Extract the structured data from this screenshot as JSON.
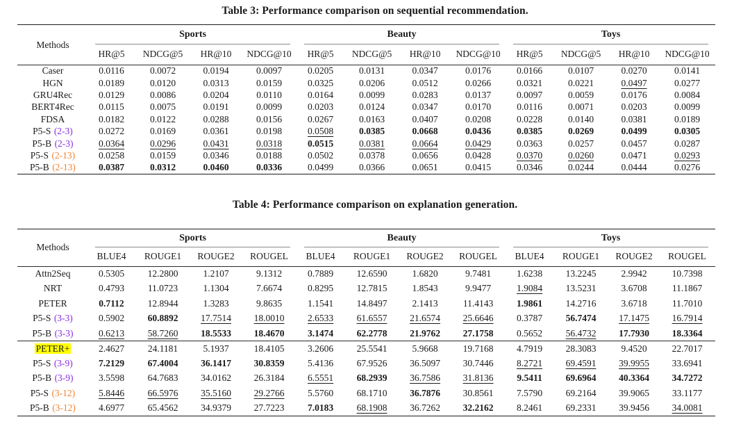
{
  "colors": {
    "purple": "#8A2BE2",
    "orange": "#EE8433",
    "highlight": "#FFFF00",
    "rule_dark": "#1c1c1c",
    "rule_light": "#8c8c8c",
    "text": "#1a1a1a"
  },
  "tables": [
    {
      "caption": "Table 3: Performance comparison on sequential recommendation.",
      "methods_header": "Methods",
      "groups": [
        "Sports",
        "Beauty",
        "Toys"
      ],
      "subcolumns": [
        "HR@5",
        "NDCG@5",
        "HR@10",
        "NDCG@10"
      ],
      "sections": [
        {
          "rows": [
            {
              "method": "Caser",
              "tag": "",
              "values": [
                "0.0116",
                "0.0072",
                "0.0194",
                "0.0097",
                "0.0205",
                "0.0131",
                "0.0347",
                "0.0176",
                "0.0166",
                "0.0107",
                "0.0270",
                "0.0141"
              ],
              "styles": "nnnnnnnnnnnn"
            },
            {
              "method": "HGN",
              "tag": "",
              "values": [
                "0.0189",
                "0.0120",
                "0.0313",
                "0.0159",
                "0.0325",
                "0.0206",
                "0.0512",
                "0.0266",
                "0.0321",
                "0.0221",
                "0.0497",
                "0.0277"
              ],
              "styles": "nnnnnnnnnnun"
            },
            {
              "method": "GRU4Rec",
              "tag": "",
              "values": [
                "0.0129",
                "0.0086",
                "0.0204",
                "0.0110",
                "0.0164",
                "0.0099",
                "0.0283",
                "0.0137",
                "0.0097",
                "0.0059",
                "0.0176",
                "0.0084"
              ],
              "styles": "nnnnnnnnnnnn"
            },
            {
              "method": "BERT4Rec",
              "tag": "",
              "values": [
                "0.0115",
                "0.0075",
                "0.0191",
                "0.0099",
                "0.0203",
                "0.0124",
                "0.0347",
                "0.0170",
                "0.0116",
                "0.0071",
                "0.0203",
                "0.0099"
              ],
              "styles": "nnnnnnnnnnnn"
            },
            {
              "method": "FDSA",
              "tag": "",
              "values": [
                "0.0182",
                "0.0122",
                "0.0288",
                "0.0156",
                "0.0267",
                "0.0163",
                "0.0407",
                "0.0208",
                "0.0228",
                "0.0140",
                "0.0381",
                "0.0189"
              ],
              "styles": "nnnnnnnnnnnn"
            },
            {
              "method": "P5-S",
              "tag": "(2-3)",
              "tag_color": "purple",
              "values": [
                "0.0272",
                "0.0169",
                "0.0361",
                "0.0198",
                "0.0508",
                "0.0385",
                "0.0668",
                "0.0436",
                "0.0385",
                "0.0269",
                "0.0499",
                "0.0305"
              ],
              "styles": "nnnnubbbbbbb"
            },
            {
              "method": "P5-B",
              "tag": "(2-3)",
              "tag_color": "purple",
              "values": [
                "0.0364",
                "0.0296",
                "0.0431",
                "0.0318",
                "0.0515",
                "0.0381",
                "0.0664",
                "0.0429",
                "0.0363",
                "0.0257",
                "0.0457",
                "0.0287"
              ],
              "styles": "uuuubuuunnnn"
            },
            {
              "method": "P5-S",
              "tag": "(2-13)",
              "tag_color": "orange",
              "values": [
                "0.0258",
                "0.0159",
                "0.0346",
                "0.0188",
                "0.0502",
                "0.0378",
                "0.0656",
                "0.0428",
                "0.0370",
                "0.0260",
                "0.0471",
                "0.0293"
              ],
              "styles": "nnnnnnnnuunu"
            },
            {
              "method": "P5-B",
              "tag": "(2-13)",
              "tag_color": "orange",
              "values": [
                "0.0387",
                "0.0312",
                "0.0460",
                "0.0336",
                "0.0499",
                "0.0366",
                "0.0651",
                "0.0415",
                "0.0346",
                "0.0244",
                "0.0444",
                "0.0276"
              ],
              "styles": "bbbbnnnnnnnn"
            }
          ]
        }
      ]
    },
    {
      "caption": "Table 4: Performance comparison on explanation generation.",
      "methods_header": "Methods",
      "groups": [
        "Sports",
        "Beauty",
        "Toys"
      ],
      "subcolumns": [
        "BLUE4",
        "ROUGE1",
        "ROUGE2",
        "ROUGEL"
      ],
      "sections": [
        {
          "rows": [
            {
              "method": "Attn2Seq",
              "tag": "",
              "values": [
                "0.5305",
                "12.2800",
                "1.2107",
                "9.1312",
                "0.7889",
                "12.6590",
                "1.6820",
                "9.7481",
                "1.6238",
                "13.2245",
                "2.9942",
                "10.7398"
              ],
              "styles": "nnnnnnnnnnnn"
            },
            {
              "method": "NRT",
              "tag": "",
              "values": [
                "0.4793",
                "11.0723",
                "1.1304",
                "7.6674",
                "0.8295",
                "12.7815",
                "1.8543",
                "9.9477",
                "1.9084",
                "13.5231",
                "3.6708",
                "11.1867"
              ],
              "styles": "nnnnnnnnunnn"
            },
            {
              "method": "PETER",
              "tag": "",
              "values": [
                "0.7112",
                "12.8944",
                "1.3283",
                "9.8635",
                "1.1541",
                "14.8497",
                "2.1413",
                "11.4143",
                "1.9861",
                "14.2716",
                "3.6718",
                "11.7010"
              ],
              "styles": "bnnnnnnnbnnn"
            },
            {
              "method": "P5-S",
              "tag": "(3-3)",
              "tag_color": "purple",
              "values": [
                "0.5902",
                "60.8892",
                "17.7514",
                "18.0010",
                "2.6533",
                "61.6557",
                "21.6574",
                "25.6646",
                "0.3787",
                "56.7474",
                "17.1475",
                "16.7914"
              ],
              "styles": "nbuuuuuunbuu"
            },
            {
              "method": "P5-B",
              "tag": "(3-3)",
              "tag_color": "purple",
              "values": [
                "0.6213",
                "58.7260",
                "18.5533",
                "18.4670",
                "3.1474",
                "62.2778",
                "21.9762",
                "27.1758",
                "0.5652",
                "56.4732",
                "17.7930",
                "18.3364"
              ],
              "styles": "uubbbbbbnubb"
            }
          ]
        },
        {
          "rows": [
            {
              "method": "PETER+",
              "tag": "",
              "highlight": true,
              "values": [
                "2.4627",
                "24.1181",
                "5.1937",
                "18.4105",
                "3.2606",
                "25.5541",
                "5.9668",
                "19.7168",
                "4.7919",
                "28.3083",
                "9.4520",
                "22.7017"
              ],
              "styles": "nnnnnnnnnnnn"
            },
            {
              "method": "P5-S",
              "tag": "(3-9)",
              "tag_color": "purple",
              "values": [
                "7.2129",
                "67.4004",
                "36.1417",
                "30.8359",
                "5.4136",
                "67.9526",
                "36.5097",
                "30.7446",
                "8.2721",
                "69.4591",
                "39.9955",
                "33.6941"
              ],
              "styles": "bbbbnnnnuuun"
            },
            {
              "method": "P5-B",
              "tag": "(3-9)",
              "tag_color": "purple",
              "values": [
                "3.5598",
                "64.7683",
                "34.0162",
                "26.3184",
                "6.5551",
                "68.2939",
                "36.7586",
                "31.8136",
                "9.5411",
                "69.6964",
                "40.3364",
                "34.7272"
              ],
              "styles": "nnnnubuubbbb"
            },
            {
              "method": "P5-S",
              "tag": "(3-12)",
              "tag_color": "orange",
              "values": [
                "5.8446",
                "66.5976",
                "35.5160",
                "29.2766",
                "5.5760",
                "68.1710",
                "36.7876",
                "30.8561",
                "7.5790",
                "69.2164",
                "39.9065",
                "33.1177"
              ],
              "styles": "uuuunnbnnnnn"
            },
            {
              "method": "P5-B",
              "tag": "(3-12)",
              "tag_color": "orange",
              "values": [
                "4.6977",
                "65.4562",
                "34.9379",
                "27.7223",
                "7.0183",
                "68.1908",
                "36.7262",
                "32.2162",
                "8.2461",
                "69.2331",
                "39.9456",
                "34.0081"
              ],
              "styles": "nnnnbunbnnnu"
            }
          ]
        }
      ]
    }
  ]
}
